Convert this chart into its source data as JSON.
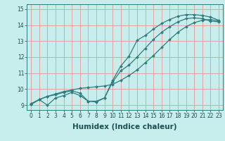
{
  "xlabel": "Humidex (Indice chaleur)",
  "bg_color": "#c8eded",
  "grid_color": "#e89898",
  "line_color": "#2d7d7d",
  "xlim": [
    -0.5,
    23.5
  ],
  "ylim": [
    8.7,
    15.3
  ],
  "yticks": [
    9,
    10,
    11,
    12,
    13,
    14,
    15
  ],
  "xticks": [
    0,
    1,
    2,
    3,
    4,
    5,
    6,
    7,
    8,
    9,
    10,
    11,
    12,
    13,
    14,
    15,
    16,
    17,
    18,
    19,
    20,
    21,
    22,
    23
  ],
  "line1_x": [
    0,
    1,
    2,
    3,
    4,
    5,
    6,
    7,
    8,
    9,
    10,
    11,
    12,
    13,
    14,
    15,
    16,
    17,
    18,
    19,
    20,
    21,
    22,
    23
  ],
  "line1_y": [
    9.05,
    9.35,
    9.55,
    9.65,
    9.8,
    9.9,
    9.75,
    9.25,
    9.25,
    9.45,
    10.55,
    11.45,
    12.05,
    13.05,
    13.35,
    13.75,
    14.1,
    14.35,
    14.55,
    14.65,
    14.65,
    14.6,
    14.5,
    14.3
  ],
  "line2_x": [
    0,
    1,
    2,
    3,
    4,
    5,
    6,
    7,
    8,
    9,
    10,
    11,
    12,
    13,
    14,
    15,
    16,
    17,
    18,
    19,
    20,
    21,
    22,
    23
  ],
  "line2_y": [
    9.05,
    9.35,
    9.0,
    9.45,
    9.6,
    9.8,
    9.6,
    9.25,
    9.2,
    9.45,
    10.45,
    11.15,
    11.5,
    12.0,
    12.55,
    13.1,
    13.55,
    13.9,
    14.2,
    14.4,
    14.45,
    14.4,
    14.25,
    14.2
  ],
  "line3_x": [
    0,
    1,
    2,
    3,
    4,
    5,
    6,
    7,
    8,
    9,
    10,
    11,
    12,
    13,
    14,
    15,
    16,
    17,
    18,
    19,
    20,
    21,
    22,
    23
  ],
  "line3_y": [
    9.1,
    9.35,
    9.55,
    9.7,
    9.85,
    9.95,
    10.05,
    10.1,
    10.15,
    10.2,
    10.3,
    10.55,
    10.85,
    11.2,
    11.65,
    12.1,
    12.6,
    13.1,
    13.55,
    13.9,
    14.15,
    14.3,
    14.35,
    14.25
  ],
  "marker_size": 2.0,
  "line_width": 0.9,
  "tick_fontsize": 5.5,
  "label_fontsize": 7.5
}
